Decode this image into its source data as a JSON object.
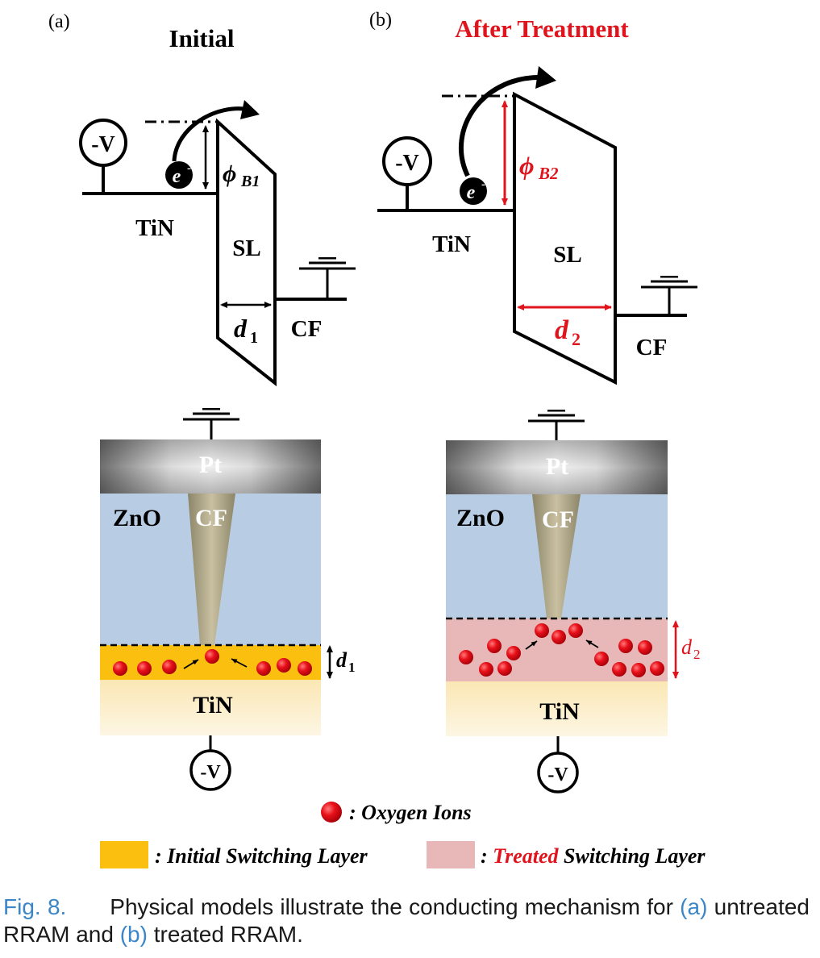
{
  "panels": {
    "a": {
      "label": "(a)",
      "title": "Initial",
      "voltage": "-V",
      "electron": "e",
      "electron_sup": "-",
      "barrier_symbol": "ϕ",
      "barrier_sub": "B1",
      "left_electrode": "TiN",
      "switching_layer": "SL",
      "thickness_symbol": "d",
      "thickness_sub": "1",
      "right_contact": "CF",
      "device": {
        "top": "Pt",
        "oxide": "ZnO",
        "filament": "CF",
        "bottom": "TiN",
        "thickness_symbol": "d",
        "thickness_sub": "1",
        "voltage": "-V"
      }
    },
    "b": {
      "label": "(b)",
      "title": "After Treatment",
      "voltage": "-V",
      "electron": "e",
      "electron_sup": "-",
      "barrier_symbol": "ϕ",
      "barrier_sub": "B2",
      "left_electrode": "TiN",
      "switching_layer": "SL",
      "thickness_symbol": "d",
      "thickness_sub": "2",
      "right_contact": "CF",
      "device": {
        "top": "Pt",
        "oxide": "ZnO",
        "filament": "CF",
        "bottom": "TiN",
        "thickness_symbol": "d",
        "thickness_sub": "2",
        "voltage": "-V"
      }
    }
  },
  "legend": {
    "oxygen": ": Oxygen Ions",
    "initial_prefix": ": Initial Switching Layer",
    "treated_prefix": ": ",
    "treated_word": "Treated",
    "treated_suffix": " Switching  Layer"
  },
  "caption": {
    "fig": "Fig. 8.",
    "text1": "Physical models illustrate the conducting mechanism for",
    "ref_a": "(a)",
    "text2": " untreated RRAM and ",
    "ref_b": "(b)",
    "text3": " treated RRAM."
  },
  "colors": {
    "treated_red": "#e0141c",
    "oxide_blue": "#b8cde3",
    "initial_layer": "#fbbf10",
    "treated_layer": "#e8b7b8",
    "caption_blue": "#3b86c8"
  }
}
